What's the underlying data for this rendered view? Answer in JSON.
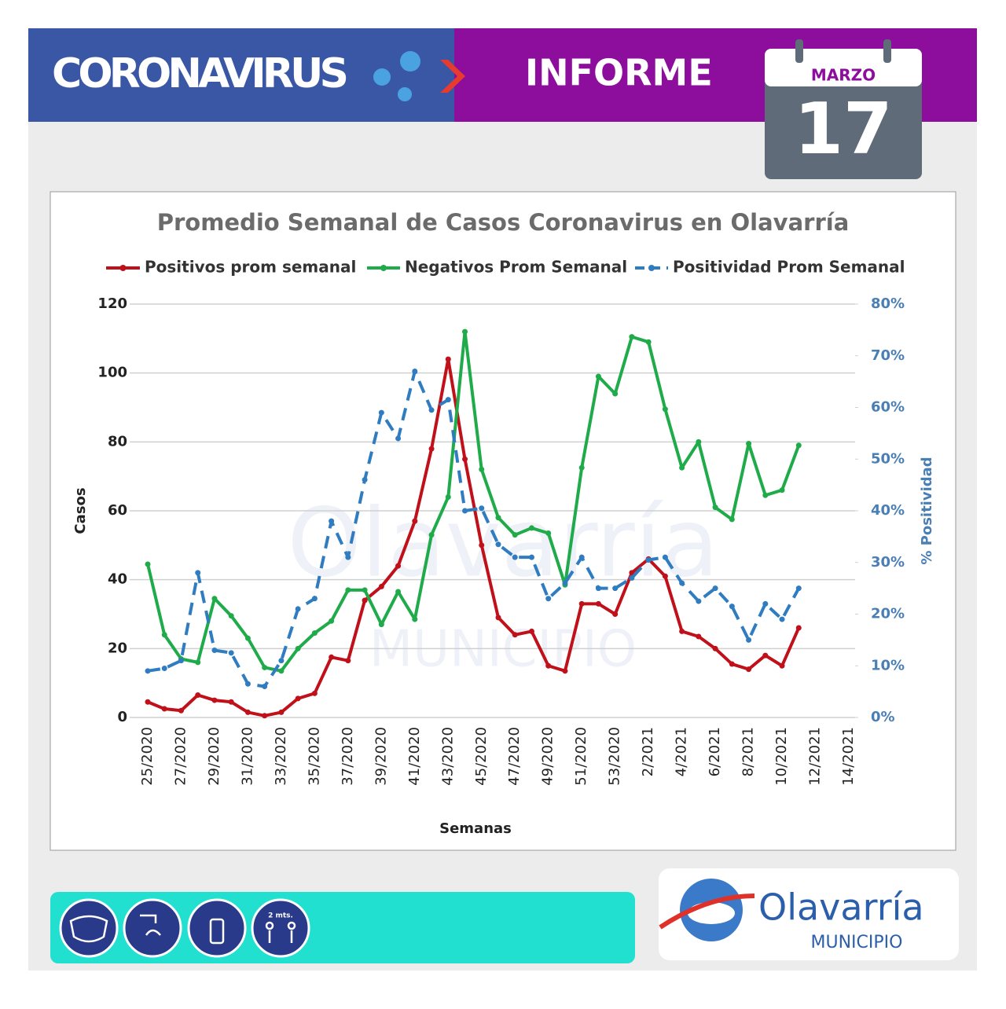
{
  "header": {
    "left": "CORONAVIRUS",
    "right": "INFORME"
  },
  "calendar": {
    "month": "MARZO",
    "day": "17"
  },
  "watermark": {
    "title": "Olavarría",
    "subtitle": "MUNICIPIO"
  },
  "footer": {
    "distance": "2 mts.",
    "logo": "Olavarría",
    "logo_subtitle": "MUNICIPIO"
  },
  "chart_data": {
    "type": "line",
    "title": "Promedio Semanal de Casos Coronavirus en Olavarría",
    "x_label": "Semanas",
    "y_label": "Casos",
    "y2_label": "% Positividad",
    "categories": [
      "25/2020",
      null,
      "27/2020",
      null,
      "29/2020",
      null,
      "31/2020",
      null,
      "33/2020",
      null,
      "35/2020",
      null,
      "37/2020",
      null,
      "39/2020",
      null,
      "41/2020",
      null,
      "43/2020",
      null,
      "45/2020",
      null,
      "47/2020",
      null,
      "49/2020",
      null,
      "51/2020",
      null,
      "53/2020",
      null,
      "2/2021",
      null,
      "4/2021",
      null,
      "6/2021",
      null,
      "8/2021",
      null,
      "10/2021",
      null,
      "12/2021",
      null,
      "14/2021"
    ],
    "ylim": [
      0,
      120
    ],
    "yticks": [
      0,
      20,
      40,
      60,
      80,
      100,
      120
    ],
    "y2lim": [
      0,
      80
    ],
    "y2ticks": [
      {
        "value": 0,
        "label": "0%"
      },
      {
        "value": 10,
        "label": "10%"
      },
      {
        "value": 20,
        "label": "20%"
      },
      {
        "value": 30,
        "label": "30%"
      },
      {
        "value": 40,
        "label": "40%"
      },
      {
        "value": 50,
        "label": "50%"
      },
      {
        "value": 60,
        "label": "60%"
      },
      {
        "value": 70,
        "label": "70%"
      },
      {
        "value": 80,
        "label": "80%"
      }
    ],
    "grid": true,
    "series": [
      {
        "name": "Positivos prom semanal",
        "color": "#c0111a",
        "values": [
          4.5,
          2.5,
          2,
          6.5,
          5,
          4.5,
          1.5,
          0.5,
          1.5,
          5.5,
          7,
          17.5,
          16.5,
          34,
          38,
          44,
          57,
          78,
          104,
          75,
          50,
          29,
          24,
          25,
          15,
          13.5,
          33,
          33,
          30,
          42,
          46,
          41,
          25,
          23.5,
          20,
          15.5,
          14,
          18,
          15,
          26,
          null,
          null,
          null
        ]
      },
      {
        "name": "Negativos Prom Semanal",
        "color": "#1fab4a",
        "values": [
          44.5,
          24,
          17,
          16,
          34.5,
          29.5,
          23,
          14.5,
          13.5,
          20,
          24.5,
          28,
          37,
          37,
          27,
          36.5,
          28.5,
          53,
          64,
          112,
          72,
          58,
          53,
          55,
          53.5,
          38.5,
          72.5,
          99,
          94,
          110.5,
          109,
          89.5,
          72.5,
          80,
          61,
          57.5,
          79.5,
          64.5,
          66,
          79,
          null,
          null,
          null
        ]
      },
      {
        "name": "Positividad Prom Semanal",
        "color": "#2f7cc1",
        "axis": "y2",
        "dashed": true,
        "values": [
          9,
          9.5,
          11,
          28,
          13,
          12.5,
          6.5,
          6,
          11,
          21,
          23,
          38,
          31,
          46,
          59,
          54,
          67,
          59.5,
          61.5,
          40,
          40.5,
          33.5,
          31,
          31,
          23,
          26,
          31,
          25,
          25,
          27,
          30.5,
          31,
          26,
          22.5,
          25,
          21.5,
          15,
          22,
          19,
          25,
          null,
          null,
          null
        ]
      }
    ]
  }
}
